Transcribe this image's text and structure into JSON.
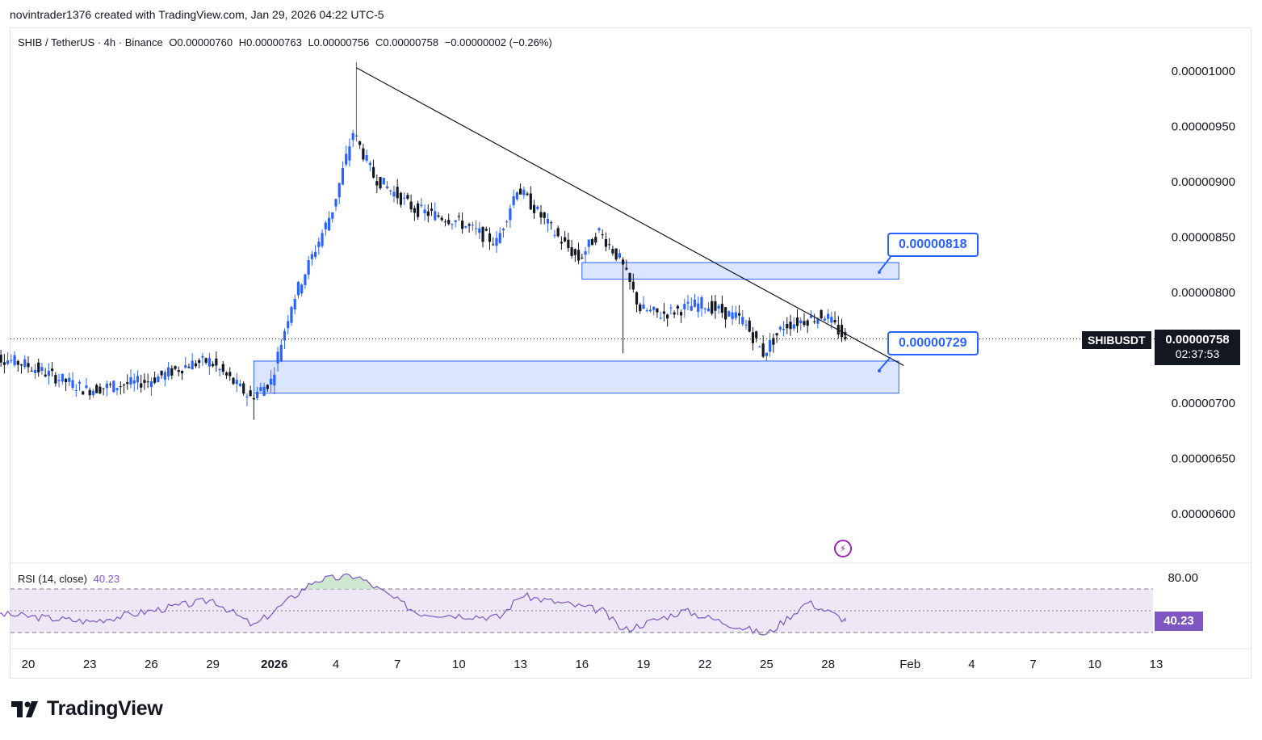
{
  "header": {
    "attribution": "novintrader1376 created with TradingView.com, Jan 29, 2026 04:22 UTC-5"
  },
  "legend": {
    "symbol": "SHIB / TetherUS · 4h · Binance",
    "open": "O0.00000760",
    "high": "H0.00000763",
    "low": "L0.00000756",
    "close": "C0.00000758",
    "change": "−0.00000002 (−0.26%)"
  },
  "rsi_legend": {
    "label": "RSI (14, close)",
    "value": "40.23"
  },
  "price_axis": {
    "ticks": [
      "0.00001000",
      "0.00000950",
      "0.00000900",
      "0.00000850",
      "0.00000800",
      "0.00000700",
      "0.00000650",
      "0.00000600"
    ]
  },
  "rsi_axis": {
    "ticks": [
      "80.00"
    ]
  },
  "time_axis": {
    "ticks": [
      "20",
      "23",
      "26",
      "29",
      "2026",
      "4",
      "7",
      "10",
      "13",
      "16",
      "19",
      "22",
      "25",
      "28",
      "Feb",
      "4",
      "7",
      "10",
      "13"
    ]
  },
  "current": {
    "symbol": "SHIBUSDT",
    "price": "0.00000758",
    "countdown": "02:37:53",
    "rsi": "40.23"
  },
  "annotations": {
    "upper_level": "0.00000818",
    "lower_level": "0.00000729"
  },
  "colors": {
    "up": "#2962ff",
    "down": "#131722",
    "zone_fill": "#d6e0ff",
    "zone_border": "#2962ff",
    "rsi_line": "#7e57c2",
    "rsi_band": "#ede7f6",
    "trendline": "#131722"
  },
  "footer": {
    "brand": "TradingView"
  },
  "chart_data": {
    "type": "candlestick",
    "interval": "4h",
    "symbol": "SHIBUSDT",
    "ylim": [
      5.6e-06,
      1.04e-05
    ],
    "close_path": [
      {
        "date": "2025-12-18",
        "close": 7.45e-06
      },
      {
        "date": "2025-12-20",
        "close": 7.35e-06
      },
      {
        "date": "2025-12-23",
        "close": 7.12e-06
      },
      {
        "date": "2025-12-26",
        "close": 7.2e-06
      },
      {
        "date": "2025-12-28",
        "close": 7.35e-06
      },
      {
        "date": "2025-12-29",
        "close": 7.38e-06
      },
      {
        "date": "2025-12-31",
        "close": 7.05e-06
      },
      {
        "date": "2026-01-01",
        "close": 7.2e-06
      },
      {
        "date": "2026-01-02",
        "close": 7.9e-06
      },
      {
        "date": "2026-01-04",
        "close": 8.75e-06
      },
      {
        "date": "2026-01-05",
        "close": 9.45e-06
      },
      {
        "date": "2026-01-06",
        "close": 9.05e-06
      },
      {
        "date": "2026-01-08",
        "close": 8.75e-06
      },
      {
        "date": "2026-01-10",
        "close": 8.65e-06
      },
      {
        "date": "2026-01-12",
        "close": 8.45e-06
      },
      {
        "date": "2026-01-13",
        "close": 8.95e-06
      },
      {
        "date": "2026-01-15",
        "close": 8.5e-06
      },
      {
        "date": "2026-01-16",
        "close": 8.3e-06
      },
      {
        "date": "2026-01-17",
        "close": 8.55e-06
      },
      {
        "date": "2026-01-18",
        "close": 8.3e-06
      },
      {
        "date": "2026-01-19",
        "close": 7.85e-06
      },
      {
        "date": "2026-01-20",
        "close": 7.8e-06
      },
      {
        "date": "2026-01-22",
        "close": 7.9e-06
      },
      {
        "date": "2026-01-24",
        "close": 7.75e-06
      },
      {
        "date": "2026-01-25",
        "close": 7.45e-06
      },
      {
        "date": "2026-01-26",
        "close": 7.7e-06
      },
      {
        "date": "2026-01-27",
        "close": 7.75e-06
      },
      {
        "date": "2026-01-28",
        "close": 7.8e-06
      },
      {
        "date": "2026-01-29",
        "close": 7.58e-06
      }
    ],
    "zones": [
      {
        "from": "2026-01-16",
        "to": "2026-02-01",
        "low": 8.12e-06,
        "high": 8.27e-06
      },
      {
        "from": "2025-12-31",
        "to": "2026-02-01",
        "low": 7.09e-06,
        "high": 7.38e-06
      }
    ],
    "trendline": {
      "from": {
        "date": "2026-01-05",
        "price": 1.003e-05
      },
      "to": {
        "date": "2026-02-01",
        "price": 7.34e-06
      }
    },
    "rsi": {
      "period": 14,
      "levels": [
        80,
        70,
        30
      ],
      "values": [
        {
          "date": "2025-12-18",
          "value": 48
        },
        {
          "date": "2025-12-23",
          "value": 40
        },
        {
          "date": "2025-12-29",
          "value": 60
        },
        {
          "date": "2025-12-31",
          "value": 36
        },
        {
          "date": "2026-01-03",
          "value": 78
        },
        {
          "date": "2026-01-05",
          "value": 82
        },
        {
          "date": "2026-01-08",
          "value": 48
        },
        {
          "date": "2026-01-12",
          "value": 44
        },
        {
          "date": "2026-01-13",
          "value": 64
        },
        {
          "date": "2026-01-17",
          "value": 50
        },
        {
          "date": "2026-01-18",
          "value": 32
        },
        {
          "date": "2026-01-21",
          "value": 50
        },
        {
          "date": "2026-01-25",
          "value": 28
        },
        {
          "date": "2026-01-27",
          "value": 58
        },
        {
          "date": "2026-01-29",
          "value": 40.23
        }
      ]
    }
  }
}
